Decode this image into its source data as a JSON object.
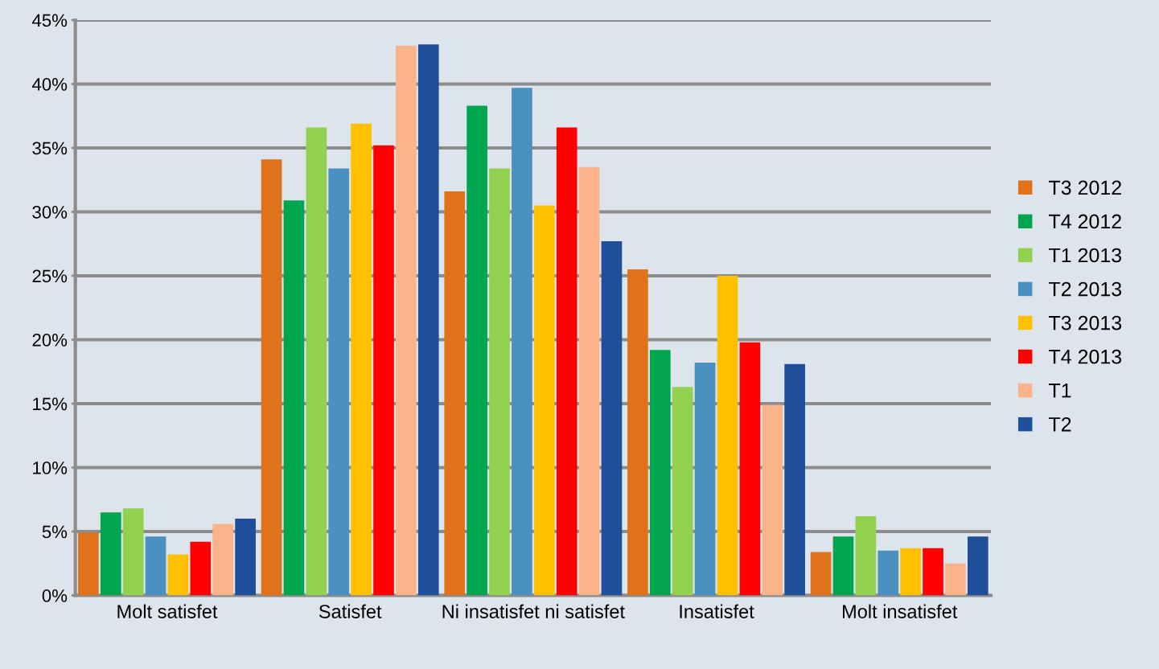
{
  "chart_data": {
    "type": "bar",
    "categories": [
      "Molt satisfet",
      "Satisfet",
      "Ni insatisfet ni satisfet",
      "Insatisfet",
      "Molt insatisfet"
    ],
    "series": [
      {
        "name": "T3 2012",
        "color": "#e0731a",
        "values": [
          4.9,
          34.1,
          31.6,
          25.5,
          3.4
        ]
      },
      {
        "name": "T4 2012",
        "color": "#00a550",
        "values": [
          6.5,
          30.9,
          38.3,
          19.2,
          4.6
        ]
      },
      {
        "name": "T1 2013",
        "color": "#92d050",
        "values": [
          6.8,
          36.6,
          33.4,
          16.3,
          6.2
        ]
      },
      {
        "name": "T2 2013",
        "color": "#4a90c0",
        "values": [
          4.6,
          33.4,
          39.7,
          18.2,
          3.5
        ]
      },
      {
        "name": "T3 2013",
        "color": "#ffc000",
        "values": [
          3.2,
          36.9,
          30.5,
          25.0,
          3.7
        ]
      },
      {
        "name": "T4 2013",
        "color": "#ff0000",
        "values": [
          4.2,
          35.2,
          36.6,
          19.8,
          3.7
        ]
      },
      {
        "name": "T1",
        "color": "#fbb48a",
        "values": [
          5.6,
          43.0,
          33.5,
          14.9,
          2.5
        ]
      },
      {
        "name": "T2",
        "color": "#1f4e9a",
        "values": [
          6.0,
          43.1,
          27.7,
          18.1,
          4.6
        ]
      }
    ],
    "ylim": [
      0,
      45
    ],
    "yticks": [
      {
        "value": 0,
        "label": "0%"
      },
      {
        "value": 5,
        "label": "5%"
      },
      {
        "value": 10,
        "label": "10%"
      },
      {
        "value": 15,
        "label": "15%"
      },
      {
        "value": 20,
        "label": "20%"
      },
      {
        "value": 25,
        "label": "25%"
      },
      {
        "value": 30,
        "label": "30%"
      },
      {
        "value": 35,
        "label": "35%"
      },
      {
        "value": 40,
        "label": "40%"
      },
      {
        "value": 45,
        "label": "45%"
      }
    ],
    "grid": "y",
    "legend": "right"
  }
}
